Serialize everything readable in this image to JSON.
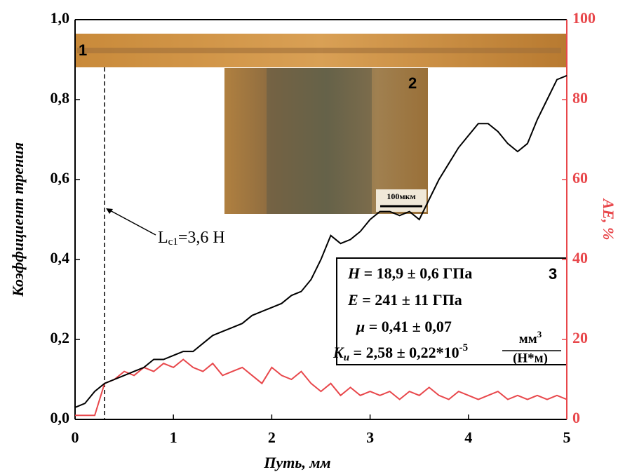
{
  "chart_data": {
    "type": "line",
    "x": [
      0,
      0.1,
      0.2,
      0.3,
      0.4,
      0.5,
      0.6,
      0.7,
      0.8,
      0.9,
      1.0,
      1.1,
      1.2,
      1.3,
      1.4,
      1.5,
      1.6,
      1.7,
      1.8,
      1.9,
      2.0,
      2.1,
      2.2,
      2.3,
      2.4,
      2.5,
      2.6,
      2.7,
      2.8,
      2.9,
      3.0,
      3.1,
      3.2,
      3.3,
      3.4,
      3.5,
      3.6,
      3.7,
      3.8,
      3.9,
      4.0,
      4.1,
      4.2,
      4.3,
      4.4,
      4.5,
      4.6,
      4.7,
      4.8,
      4.9,
      5.0
    ],
    "series": [
      {
        "color": "#000000",
        "values": [
          0.03,
          0.04,
          0.07,
          0.09,
          0.1,
          0.11,
          0.12,
          0.13,
          0.15,
          0.15,
          0.16,
          0.17,
          0.17,
          0.19,
          0.21,
          0.22,
          0.23,
          0.24,
          0.26,
          0.27,
          0.28,
          0.29,
          0.31,
          0.32,
          0.35,
          0.4,
          0.46,
          0.44,
          0.45,
          0.47,
          0.5,
          0.52,
          0.52,
          0.51,
          0.52,
          0.5,
          0.55,
          0.6,
          0.64,
          0.68,
          0.71,
          0.74,
          0.74,
          0.72,
          0.69,
          0.67,
          0.69,
          0.75,
          0.8,
          0.85,
          0.86
        ]
      },
      {
        "color": "#e8474b",
        "axis": "y2",
        "values": [
          1,
          1,
          1,
          9,
          10,
          12,
          11,
          13,
          12,
          14,
          13,
          15,
          13,
          12,
          14,
          11,
          12,
          13,
          11,
          9,
          13,
          11,
          10,
          12,
          9,
          7,
          9,
          6,
          8,
          6,
          7,
          6,
          7,
          5,
          7,
          6,
          8,
          6,
          5,
          7,
          6,
          5,
          6,
          7,
          5,
          6,
          5,
          6,
          5,
          6,
          5
        ]
      }
    ],
    "xlim": [
      0,
      5
    ],
    "xticks": [
      0,
      1,
      2,
      3,
      4,
      5
    ],
    "ylim": [
      0,
      1
    ],
    "yticks": [
      {
        "value": 0,
        "label": "0,0"
      },
      {
        "value": 0.2,
        "label": "0,2"
      },
      {
        "value": 0.4,
        "label": "0,4"
      },
      {
        "value": 0.6,
        "label": "0,6"
      },
      {
        "value": 0.8,
        "label": "0,8"
      },
      {
        "value": 1,
        "label": "1,0"
      }
    ],
    "y2lim": [
      0,
      100
    ],
    "y2ticks": [
      0,
      20,
      40,
      60,
      80,
      100
    ],
    "y2color": "#e8474b",
    "xlabel": "Путь, мм",
    "ylabel": "Коэффициент трения",
    "y2label": "AE, %",
    "annotations": {
      "inset1_label": "1",
      "inset2_label": "2",
      "scale_bar": "100мкм",
      "lc1": {
        "L": "L",
        "sub": "c1",
        "rest": "=3,6 Н",
        "dashed_line_x": 0.3
      },
      "box": {
        "label": "3",
        "lines": [
          {
            "var": "H",
            "text": " = 18,9 ± 0,6 ГПа"
          },
          {
            "var": "E",
            "text": " = 241 ± 11 ГПа"
          },
          {
            "var": "μ",
            "text": " = 0,41 ± 0,07"
          }
        ],
        "k": {
          "var": "K",
          "sub": "и",
          "text": " = 2,58 ± 0,22*10",
          "sup": "-5",
          "num": "мм",
          "num_sup": "3",
          "den": "(Н*м)"
        }
      }
    }
  }
}
